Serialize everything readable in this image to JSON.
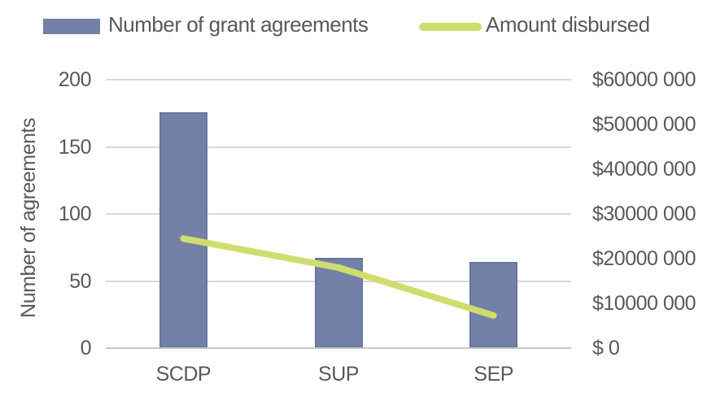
{
  "chart_data": {
    "type": "combo-bar-line",
    "categories": [
      "SCDP",
      "SUP",
      "SEP"
    ],
    "series": [
      {
        "name": "Number of grant agreements",
        "type": "bar",
        "axis": "left",
        "color": "#7381A8",
        "values": [
          176,
          67,
          64
        ]
      },
      {
        "name": "Amount disbursed",
        "type": "line",
        "axis": "right",
        "color": "#D0DD6E",
        "values": [
          24500000,
          18000000,
          7300000
        ]
      }
    ],
    "left_axis": {
      "title": "Number of agreements",
      "min": 0,
      "max": 200,
      "ticks": [
        0,
        50,
        100,
        150,
        200
      ],
      "tick_labels": [
        "0",
        "50",
        "100",
        "150",
        "200"
      ]
    },
    "right_axis": {
      "min": 0,
      "max": 60000000,
      "ticks": [
        0,
        10000000,
        20000000,
        30000000,
        40000000,
        50000000,
        60000000
      ],
      "tick_labels": [
        "$ 0",
        "$10000 000",
        "$20000 000",
        "$30000 000",
        "$40000 000",
        "$50000 000",
        "$60000 000"
      ]
    },
    "x_axis": {
      "labels": [
        "SCDP",
        "SUP",
        "SEP"
      ]
    },
    "grid": true,
    "legend_position": "top"
  },
  "colors": {
    "bar": "#7381A8",
    "line": "#D0DD6E",
    "grid": "#D9D9D9",
    "axis_line": "#C6C6C6",
    "text": "#595959"
  }
}
